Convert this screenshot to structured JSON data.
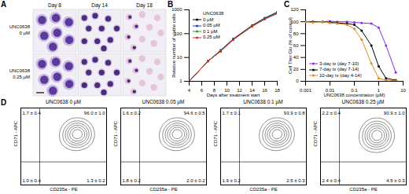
{
  "panel_a": {
    "panel": "A",
    "columns": [
      "Day 8",
      "Day 14",
      "Day 18"
    ],
    "rows": [
      [
        "UNC0638",
        "0 µM"
      ],
      [
        "UNC0638",
        "0.25 µM"
      ]
    ]
  },
  "panel_d": {
    "panel": "D"
  },
  "chart_data": [
    {
      "type": "line",
      "panel": "B",
      "xlabel": "Days after treatment start",
      "ylabel": "Relative number of viable cells",
      "x": [
        4,
        7,
        9,
        11,
        14,
        16,
        18
      ],
      "xlim": [
        4,
        18
      ],
      "xticks": [
        4,
        6,
        8,
        10,
        12,
        14,
        16,
        18
      ],
      "ylim": [
        1,
        1000
      ],
      "yticks": [
        1,
        10,
        100,
        1000
      ],
      "log": "y",
      "grid": false,
      "marker": "circle",
      "legend": "top-left",
      "legend_title": "UNC0638",
      "series": [
        {
          "name": "0 µM",
          "color": "#000000",
          "values": [
            1,
            7,
            20,
            60,
            220,
            450,
            800
          ]
        },
        {
          "name": "0.05 µM",
          "color": "#1f3fbf",
          "values": [
            1,
            7,
            19,
            58,
            210,
            430,
            760
          ]
        },
        {
          "name": "0.1 µM",
          "color": "#2ca02c",
          "values": [
            1,
            7,
            19,
            57,
            205,
            420,
            740
          ]
        },
        {
          "name": "0.25 µM",
          "color": "#d62728",
          "values": [
            1,
            7,
            18,
            55,
            200,
            400,
            700
          ]
        }
      ]
    },
    {
      "type": "line",
      "panel": "C",
      "xlabel": "UNC0638 concentration (µM)",
      "ylabel": "Cell Titer Glo (% of control)",
      "x": [
        0.001,
        0.002,
        0.005,
        0.01,
        0.02,
        0.05,
        0.1,
        0.2,
        0.5,
        1,
        2,
        5
      ],
      "xlim": [
        0.001,
        10
      ],
      "xticks": [
        0.001,
        0.01,
        0.1,
        1,
        10
      ],
      "ylim": [
        0,
        120
      ],
      "yticks": [
        0,
        20,
        40,
        60,
        80,
        100,
        120
      ],
      "log": "x",
      "grid": false,
      "marker": "circle",
      "legend": "bottom-left",
      "series": [
        {
          "name": "3-day tx (day 7-10)",
          "color": "#8a2be2",
          "values": [
            100,
            100,
            100,
            101,
            100,
            100,
            99,
            98,
            97,
            90,
            60,
            15
          ]
        },
        {
          "name": "7-day tx (day 7-14)",
          "color": "#000000",
          "values": [
            100,
            100,
            100,
            99,
            98,
            97,
            95,
            85,
            60,
            25,
            5,
            2
          ]
        },
        {
          "name": "10-day tx (day 4-14)",
          "color": "#e08a1e",
          "values": [
            100,
            99,
            100,
            98,
            97,
            95,
            88,
            70,
            30,
            5,
            2,
            1
          ]
        }
      ]
    },
    {
      "type": "contour",
      "title": "UNC0638 0 µM",
      "xlabel": "CD235a - PE",
      "ylabel": "CD71 - APC",
      "xlim": [
        0,
        100
      ],
      "ylim": [
        0,
        100
      ],
      "tick_labels": false,
      "gate": [
        22,
        30
      ],
      "quadrant_labels": {
        "upper_left": "1.7 ± 0.4",
        "upper_right": "96.0 ± 1.0",
        "lower_left": "1.0 ± 0.4",
        "lower_right": "1.3 ± 0.2"
      },
      "population": {
        "x": [
          55,
          60,
          62,
          65,
          68,
          70,
          72,
          75,
          63,
          58,
          67,
          71
        ],
        "y": [
          60,
          65,
          70,
          62,
          68,
          72,
          64,
          66,
          58,
          70,
          75,
          60
        ]
      }
    },
    {
      "type": "contour",
      "title": "UNC0638 0.05 µM",
      "xlabel": "CD235a - PE",
      "ylabel": "CD71 - APC",
      "xlim": [
        0,
        100
      ],
      "ylim": [
        0,
        100
      ],
      "tick_labels": false,
      "gate": [
        22,
        30
      ],
      "quadrant_labels": {
        "upper_left": "1.6 ± 0.2",
        "upper_right": "94.6 ± 0.5",
        "lower_left": "1.8 ± 0.2",
        "lower_right": "2.0 ± 0.2"
      },
      "population": {
        "x": [
          55,
          60,
          62,
          65,
          68,
          70,
          72,
          75,
          63,
          58,
          67,
          71
        ],
        "y": [
          60,
          65,
          70,
          62,
          68,
          72,
          64,
          66,
          58,
          70,
          75,
          60
        ]
      }
    },
    {
      "type": "contour",
      "title": "UNC0638 0.1 µM",
      "xlabel": "CD235a - PE",
      "ylabel": "CD71 - APC",
      "xlim": [
        0,
        100
      ],
      "ylim": [
        0,
        100
      ],
      "tick_labels": false,
      "gate": [
        22,
        30
      ],
      "quadrant_labels": {
        "upper_left": "1.7 ± 0.1",
        "upper_right": "93.9 ± 0.8",
        "lower_left": "1.9 ± 0.2",
        "lower_right": "2.5 ± 0.3"
      },
      "population": {
        "x": [
          55,
          60,
          62,
          65,
          68,
          70,
          72,
          75,
          63,
          58,
          67,
          71
        ],
        "y": [
          60,
          65,
          70,
          62,
          68,
          72,
          64,
          66,
          58,
          70,
          75,
          60
        ]
      }
    },
    {
      "type": "contour",
      "title": "UNC0638 0.25 µM",
      "xlabel": "CD235a - PE",
      "ylabel": "CD71 - APC",
      "xlim": [
        0,
        100
      ],
      "ylim": [
        0,
        100
      ],
      "tick_labels": false,
      "gate": [
        22,
        30
      ],
      "quadrant_labels": {
        "upper_left": "2.2 ± 0.4",
        "upper_right": "90.9 ± 1.0",
        "lower_left": "2.4 ± 0.4",
        "lower_right": "4.5 ± 0.3"
      },
      "population": {
        "x": [
          55,
          60,
          62,
          65,
          68,
          70,
          72,
          75,
          63,
          58,
          67,
          71
        ],
        "y": [
          58,
          63,
          70,
          60,
          66,
          72,
          62,
          64,
          55,
          70,
          75,
          57
        ]
      }
    }
  ]
}
